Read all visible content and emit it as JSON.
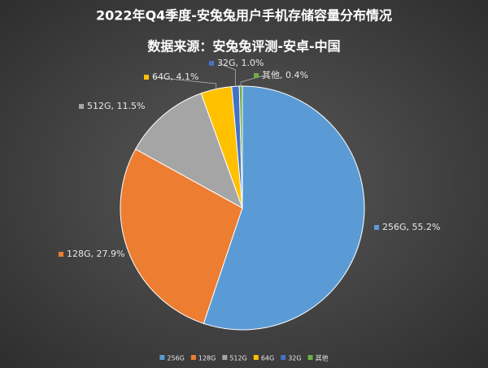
{
  "chart_data": {
    "type": "pie",
    "title": "2022年Q4季度-安兔兔用户手机存储容量分布情况",
    "subtitle": "数据来源：安兔兔评测-安卓-中国",
    "categories": [
      "256G",
      "128G",
      "512G",
      "64G",
      "32G",
      "其他"
    ],
    "values": [
      55.2,
      27.9,
      11.5,
      4.1,
      1.0,
      0.4
    ],
    "value_labels": [
      "256G, 55.2%",
      "128G, 27.9%",
      "512G, 11.5%",
      "64G, 4.1%",
      "32G, 1.0%",
      "其他, 0.4%"
    ],
    "colors": [
      "#5b9bd5",
      "#ed7d31",
      "#a5a5a5",
      "#ffc000",
      "#4472c4",
      "#70ad47"
    ],
    "legend": "bottom"
  }
}
